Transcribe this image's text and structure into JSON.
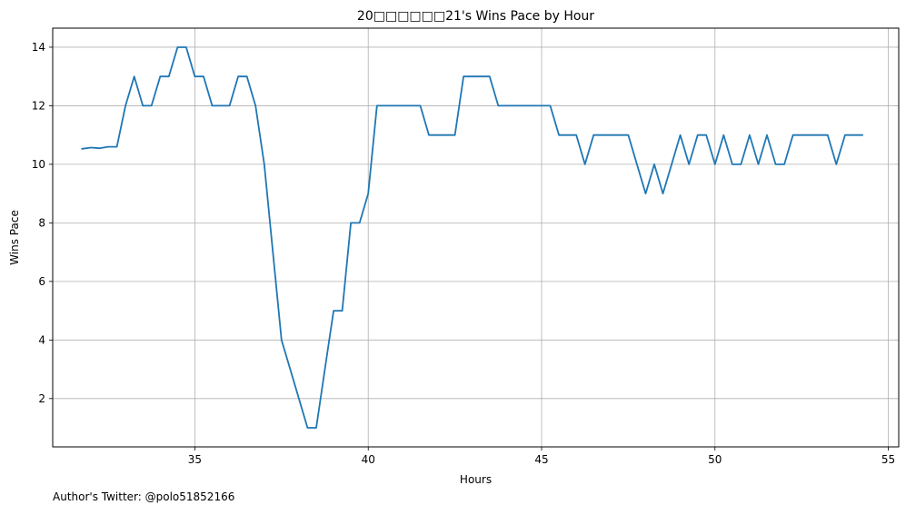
{
  "chart_data": {
    "type": "line",
    "title": "20□□□□□□21's Wins Pace by Hour",
    "xlabel": "Hours",
    "ylabel": "Wins Pace",
    "xlim": [
      30.9,
      55.3
    ],
    "ylim": [
      0.35,
      14.65
    ],
    "x_ticks": [
      35,
      40,
      45,
      50,
      55
    ],
    "y_ticks": [
      2,
      4,
      6,
      8,
      10,
      12,
      14
    ],
    "grid": true,
    "series": [
      {
        "color": "#1f77b4",
        "points": [
          [
            31.75,
            10.53
          ],
          [
            32.0,
            10.57
          ],
          [
            32.25,
            10.55
          ],
          [
            32.5,
            10.6
          ],
          [
            32.75,
            10.6
          ],
          [
            33.0,
            12
          ],
          [
            33.25,
            13
          ],
          [
            33.5,
            12
          ],
          [
            33.75,
            12
          ],
          [
            34.0,
            13
          ],
          [
            34.25,
            13
          ],
          [
            34.5,
            14
          ],
          [
            34.75,
            14
          ],
          [
            35.0,
            13
          ],
          [
            35.25,
            13
          ],
          [
            35.5,
            12
          ],
          [
            35.75,
            12
          ],
          [
            36.0,
            12
          ],
          [
            36.25,
            13
          ],
          [
            36.5,
            13
          ],
          [
            36.75,
            12
          ],
          [
            37.0,
            10
          ],
          [
            37.25,
            7
          ],
          [
            37.5,
            4
          ],
          [
            37.75,
            3
          ],
          [
            38.0,
            2
          ],
          [
            38.25,
            1
          ],
          [
            38.5,
            1
          ],
          [
            38.75,
            3
          ],
          [
            39.0,
            5
          ],
          [
            39.25,
            5
          ],
          [
            39.5,
            8
          ],
          [
            39.75,
            8
          ],
          [
            40.0,
            9
          ],
          [
            40.25,
            12
          ],
          [
            40.5,
            12
          ],
          [
            40.75,
            12
          ],
          [
            41.0,
            12
          ],
          [
            41.25,
            12
          ],
          [
            41.5,
            12
          ],
          [
            41.75,
            11
          ],
          [
            42.0,
            11
          ],
          [
            42.25,
            11
          ],
          [
            42.5,
            11
          ],
          [
            42.75,
            13
          ],
          [
            43.0,
            13
          ],
          [
            43.25,
            13
          ],
          [
            43.5,
            13
          ],
          [
            43.75,
            12
          ],
          [
            44.0,
            12
          ],
          [
            44.25,
            12
          ],
          [
            44.5,
            12
          ],
          [
            44.75,
            12
          ],
          [
            45.0,
            12
          ],
          [
            45.25,
            12
          ],
          [
            45.5,
            11
          ],
          [
            45.75,
            11
          ],
          [
            46.0,
            11
          ],
          [
            46.25,
            10
          ],
          [
            46.5,
            11
          ],
          [
            46.75,
            11
          ],
          [
            47.0,
            11
          ],
          [
            47.25,
            11
          ],
          [
            47.5,
            11
          ],
          [
            47.75,
            10
          ],
          [
            48.0,
            9
          ],
          [
            48.25,
            10
          ],
          [
            48.5,
            9
          ],
          [
            48.75,
            10
          ],
          [
            49.0,
            11
          ],
          [
            49.25,
            10
          ],
          [
            49.5,
            11
          ],
          [
            49.75,
            11
          ],
          [
            50.0,
            10
          ],
          [
            50.25,
            11
          ],
          [
            50.5,
            10
          ],
          [
            50.75,
            10
          ],
          [
            51.0,
            11
          ],
          [
            51.25,
            10
          ],
          [
            51.5,
            11
          ],
          [
            51.75,
            10
          ],
          [
            52.0,
            10
          ],
          [
            52.25,
            11
          ],
          [
            52.5,
            11
          ],
          [
            52.75,
            11
          ],
          [
            53.0,
            11
          ],
          [
            53.25,
            11
          ],
          [
            53.5,
            10
          ],
          [
            53.75,
            11
          ],
          [
            54.0,
            11
          ],
          [
            54.25,
            11
          ]
        ]
      }
    ]
  },
  "footer": {
    "credit": "Author's Twitter: @polo51852166"
  }
}
